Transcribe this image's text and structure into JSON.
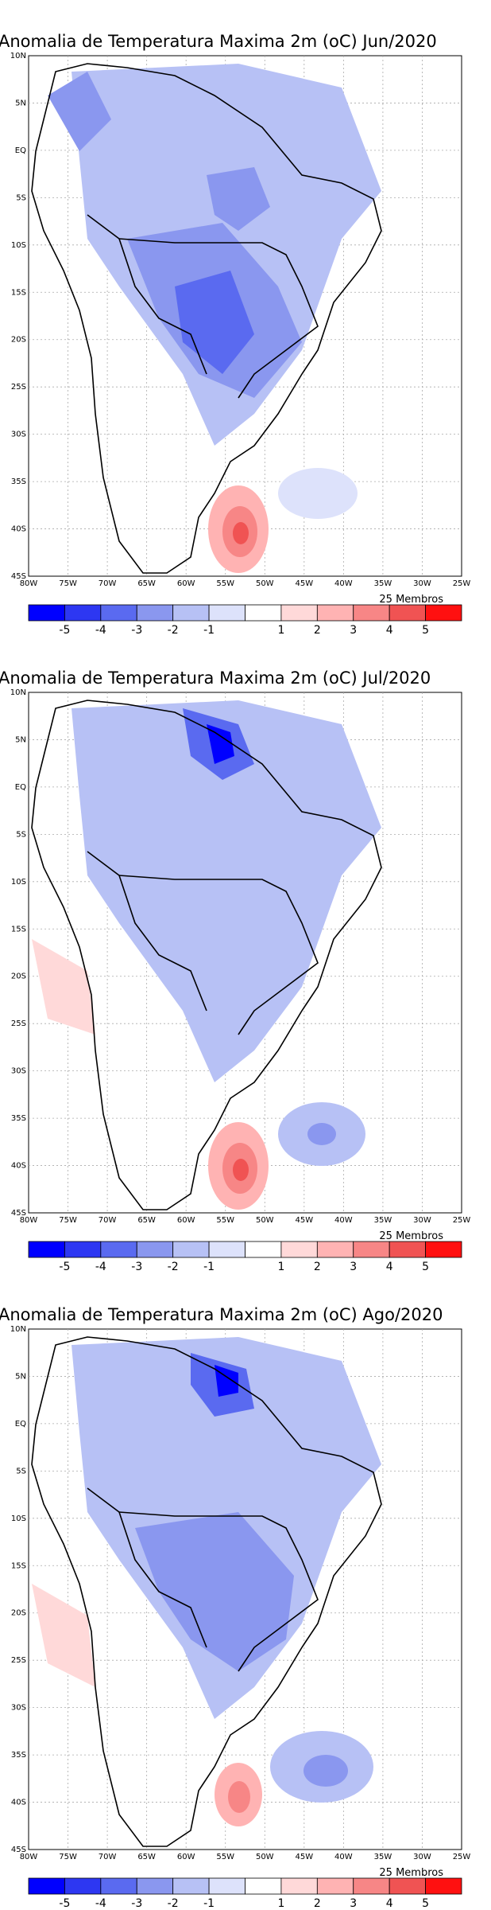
{
  "panels": [
    {
      "title": "Anomalia de Temperatura Maxima 2m (oC) Jun/2020",
      "members_label": "25 Membros"
    },
    {
      "title": "Anomalia de Temperatura Maxima 2m (oC) Jul/2020",
      "members_label": "25 Membros"
    },
    {
      "title": "Anomalia de Temperatura Maxima 2m (oC) Ago/2020",
      "members_label": "25 Membros"
    }
  ],
  "map_axes": {
    "lat_labels": [
      "10N",
      "5N",
      "EQ",
      "5S",
      "10S",
      "15S",
      "20S",
      "25S",
      "30S",
      "35S",
      "40S",
      "45S"
    ],
    "lon_labels": [
      "80W",
      "75W",
      "70W",
      "65W",
      "60W",
      "55W",
      "50W",
      "45W",
      "40W",
      "35W",
      "30W",
      "25W"
    ]
  },
  "colorbar": {
    "tick_labels": [
      "-5",
      "-4",
      "-3",
      "-2",
      "-1",
      "1",
      "2",
      "3",
      "4",
      "5"
    ],
    "colors": [
      "#0000ff",
      "#2d37f2",
      "#5a6af0",
      "#8a97ef",
      "#b7c1f5",
      "#dde2fb",
      "#ffffff",
      "#ffd9d9",
      "#ffb3b3",
      "#f78686",
      "#f05353",
      "#ff1010"
    ]
  }
}
